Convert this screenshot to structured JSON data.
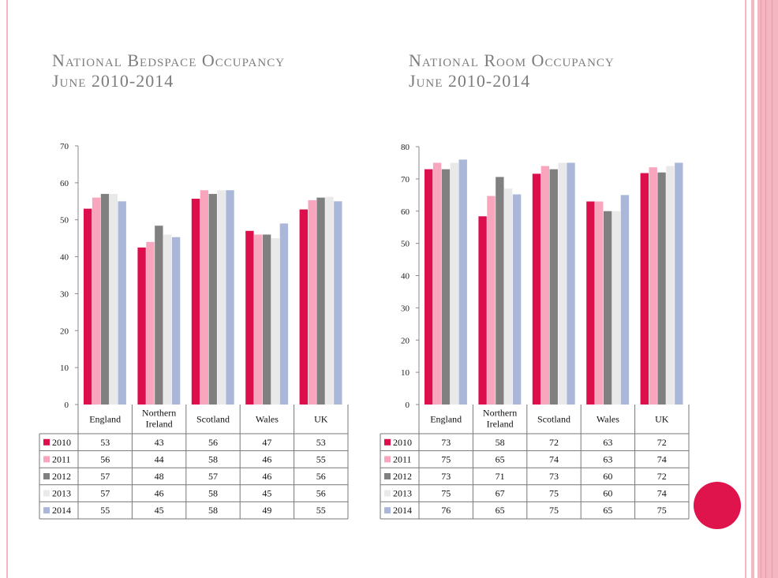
{
  "colors": {
    "accent": "#E0144C",
    "title": "#7d7d7d",
    "rule": "#F4B8C4",
    "series": [
      "#DC0F4C",
      "#F7A6BE",
      "#808080",
      "#E9E9E9",
      "#AAB7D8"
    ]
  },
  "slide": {
    "left_title_line1": "National Bedspace Occupancy",
    "left_title_line2": "June 2010-2014",
    "right_title_line1": "National Room Occupancy",
    "right_title_line2": "June 2010-2014"
  },
  "chart_data": [
    {
      "type": "bar",
      "title": "National Bedspace Occupancy June 2010-2014",
      "categories": [
        "England",
        "Northern Ireland",
        "Scotland",
        "Wales",
        "UK"
      ],
      "ylim": [
        0,
        70
      ],
      "yticks": [
        0,
        10,
        20,
        30,
        40,
        50,
        60,
        70
      ],
      "grid": false,
      "legend": "data-table",
      "series": [
        {
          "name": "2010",
          "values": [
            53,
            42.5,
            55.7,
            47,
            52.8
          ],
          "labels": [
            "53",
            "43",
            "56",
            "47",
            "53"
          ]
        },
        {
          "name": "2011",
          "values": [
            56,
            44,
            58,
            46,
            55.3
          ],
          "labels": [
            "56",
            "44",
            "58",
            "46",
            "55"
          ]
        },
        {
          "name": "2012",
          "values": [
            57,
            48.4,
            57,
            46,
            56
          ],
          "labels": [
            "57",
            "48",
            "57",
            "46",
            "56"
          ]
        },
        {
          "name": "2013",
          "values": [
            57,
            46,
            58,
            45,
            56.2
          ],
          "labels": [
            "57",
            "46",
            "58",
            "45",
            "56"
          ]
        },
        {
          "name": "2014",
          "values": [
            55,
            45.3,
            58,
            49,
            55
          ],
          "labels": [
            "55",
            "45",
            "58",
            "49",
            "55"
          ]
        }
      ]
    },
    {
      "type": "bar",
      "title": "National Room Occupancy June 2010-2014",
      "categories": [
        "England",
        "Northern Ireland",
        "Scotland",
        "Wales",
        "UK"
      ],
      "ylim": [
        0,
        80
      ],
      "yticks": [
        0,
        10,
        20,
        30,
        40,
        50,
        60,
        70,
        80
      ],
      "grid": false,
      "legend": "data-table",
      "series": [
        {
          "name": "2010",
          "values": [
            73,
            58.4,
            71.6,
            63,
            71.8
          ],
          "labels": [
            "73",
            "58",
            "72",
            "63",
            "72"
          ]
        },
        {
          "name": "2011",
          "values": [
            75,
            64.7,
            74,
            63,
            73.6
          ],
          "labels": [
            "75",
            "65",
            "74",
            "63",
            "74"
          ]
        },
        {
          "name": "2012",
          "values": [
            73,
            70.6,
            73,
            60,
            72
          ],
          "labels": [
            "73",
            "71",
            "73",
            "60",
            "72"
          ]
        },
        {
          "name": "2013",
          "values": [
            75,
            67,
            75,
            60,
            74
          ],
          "labels": [
            "75",
            "67",
            "75",
            "60",
            "74"
          ]
        },
        {
          "name": "2014",
          "values": [
            76,
            65.2,
            75,
            65,
            75
          ],
          "labels": [
            "76",
            "65",
            "75",
            "65",
            "75"
          ]
        }
      ]
    }
  ]
}
